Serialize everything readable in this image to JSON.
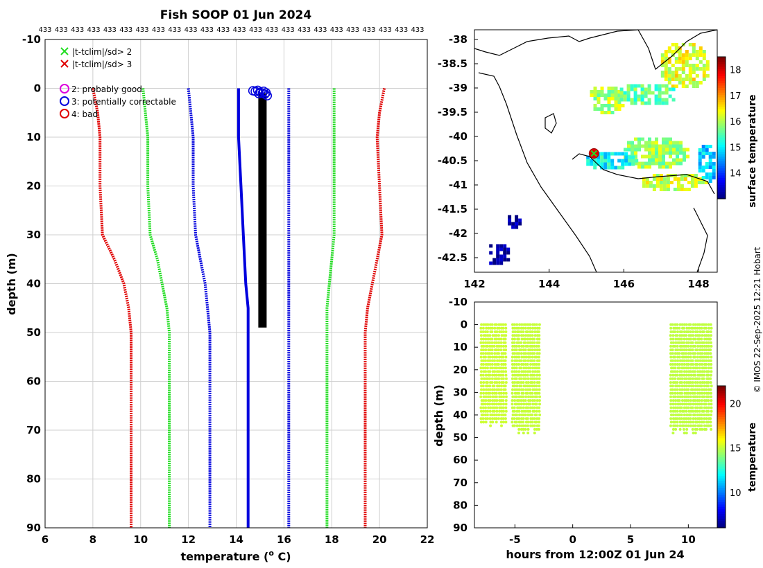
{
  "title": "Fish SOOP 01 Jun 2024",
  "credit": "© IMOS 22-Sep-2025 12:21 Hobart",
  "colors": {
    "red": "#e00000",
    "green": "#22dd22",
    "blue": "#0000dd",
    "black": "#000000",
    "magenta": "#dd00dd",
    "grid": "#cfcfcf"
  },
  "chart_data": [
    {
      "type": "line",
      "name": "profile",
      "xlabel": "temperature (o C)",
      "xlabel_main": "temperature (",
      "xlabel_sup": "o",
      "xlabel_end": " C)",
      "ylabel": "depth (m)",
      "xlim": [
        6,
        22
      ],
      "ylim": [
        -10,
        90
      ],
      "y_reversed": true,
      "xticks": [
        "6",
        "8",
        "10",
        "12",
        "14",
        "16",
        "18",
        "20",
        "22"
      ],
      "yticks": [
        "-10",
        "0",
        "10",
        "20",
        "30",
        "40",
        "50",
        "60",
        "70",
        "80",
        "90"
      ],
      "top_count_label": "433",
      "top_count_repeats": 24,
      "grid": true,
      "legend": [
        {
          "label": "|t-tclim|/sd> 2",
          "marker": "x",
          "color": "green"
        },
        {
          "label": "|t-tclim|/sd> 3",
          "marker": "x",
          "color": "red"
        },
        {
          "label": "2: probably good",
          "marker": "o",
          "color": "magenta"
        },
        {
          "label": "3: potentially correctable",
          "marker": "o",
          "color": "blue"
        },
        {
          "label": "4: bad",
          "marker": "o",
          "color": "red"
        }
      ],
      "series": [
        {
          "name": "clim -3sd",
          "color": "red",
          "points": [
            [
              8.0,
              0
            ],
            [
              8.2,
              5
            ],
            [
              8.3,
              10
            ],
            [
              8.3,
              20
            ],
            [
              8.4,
              30
            ],
            [
              8.9,
              35
            ],
            [
              9.3,
              40
            ],
            [
              9.5,
              45
            ],
            [
              9.6,
              50
            ],
            [
              9.6,
              60
            ],
            [
              9.6,
              70
            ],
            [
              9.6,
              80
            ],
            [
              9.6,
              90
            ]
          ]
        },
        {
          "name": "clim -2sd",
          "color": "green",
          "points": [
            [
              10.1,
              0
            ],
            [
              10.2,
              5
            ],
            [
              10.3,
              10
            ],
            [
              10.3,
              20
            ],
            [
              10.4,
              30
            ],
            [
              10.7,
              35
            ],
            [
              10.9,
              40
            ],
            [
              11.1,
              45
            ],
            [
              11.2,
              50
            ],
            [
              11.2,
              60
            ],
            [
              11.2,
              70
            ],
            [
              11.2,
              80
            ],
            [
              11.2,
              90
            ]
          ]
        },
        {
          "name": "clim -1sd",
          "color": "blue",
          "points": [
            [
              12.0,
              0
            ],
            [
              12.1,
              5
            ],
            [
              12.2,
              10
            ],
            [
              12.2,
              20
            ],
            [
              12.3,
              30
            ],
            [
              12.5,
              35
            ],
            [
              12.7,
              40
            ],
            [
              12.8,
              45
            ],
            [
              12.9,
              50
            ],
            [
              12.9,
              60
            ],
            [
              12.9,
              70
            ],
            [
              12.9,
              80
            ],
            [
              12.9,
              90
            ]
          ]
        },
        {
          "name": "clim mean",
          "color": "blue",
          "points": [
            [
              14.1,
              0
            ],
            [
              14.1,
              10
            ],
            [
              14.2,
              20
            ],
            [
              14.3,
              30
            ],
            [
              14.4,
              40
            ],
            [
              14.5,
              45
            ],
            [
              14.5,
              50
            ],
            [
              14.5,
              60
            ],
            [
              14.5,
              90
            ]
          ]
        },
        {
          "name": "clim +1sd",
          "color": "blue",
          "points": [
            [
              16.2,
              0
            ],
            [
              16.2,
              10
            ],
            [
              16.2,
              20
            ],
            [
              16.2,
              30
            ],
            [
              16.2,
              40
            ],
            [
              16.2,
              50
            ],
            [
              16.2,
              60
            ],
            [
              16.2,
              70
            ],
            [
              16.2,
              80
            ],
            [
              16.2,
              90
            ]
          ]
        },
        {
          "name": "clim +2sd",
          "color": "green",
          "points": [
            [
              18.1,
              0
            ],
            [
              18.1,
              10
            ],
            [
              18.1,
              20
            ],
            [
              18.1,
              30
            ],
            [
              18.0,
              35
            ],
            [
              17.9,
              40
            ],
            [
              17.8,
              45
            ],
            [
              17.8,
              50
            ],
            [
              17.8,
              60
            ],
            [
              17.8,
              70
            ],
            [
              17.8,
              80
            ],
            [
              17.8,
              90
            ]
          ]
        },
        {
          "name": "clim +3sd",
          "color": "red",
          "points": [
            [
              20.2,
              0
            ],
            [
              20.0,
              5
            ],
            [
              19.9,
              10
            ],
            [
              20.0,
              20
            ],
            [
              20.1,
              30
            ],
            [
              19.9,
              35
            ],
            [
              19.7,
              40
            ],
            [
              19.5,
              45
            ],
            [
              19.4,
              50
            ],
            [
              19.4,
              60
            ],
            [
              19.4,
              70
            ],
            [
              19.4,
              80
            ],
            [
              19.4,
              90
            ]
          ]
        },
        {
          "name": "observed",
          "color": "black",
          "points": [
            [
              15.1,
              1
            ],
            [
              15.1,
              10
            ],
            [
              15.1,
              20
            ],
            [
              15.1,
              30
            ],
            [
              15.1,
              40
            ],
            [
              15.1,
              49
            ]
          ]
        }
      ],
      "flag_circles": [
        [
          14.7,
          0.5
        ],
        [
          14.8,
          0.6
        ],
        [
          14.9,
          0.4
        ],
        [
          15.0,
          0.8
        ],
        [
          15.1,
          1.0
        ],
        [
          15.15,
          0.6
        ],
        [
          15.2,
          1.2
        ],
        [
          15.25,
          0.9
        ],
        [
          15.3,
          1.5
        ],
        [
          14.95,
          1.1
        ]
      ]
    },
    {
      "type": "heatmap",
      "name": "sst_map",
      "xlim": [
        142,
        148.5
      ],
      "ylim": [
        -42.8,
        -37.8
      ],
      "xticks": [
        "142",
        "144",
        "146",
        "148"
      ],
      "yticks": [
        "-38",
        "-38.5",
        "-39",
        "-39.5",
        "-40",
        "-40.5",
        "-41",
        "-41.5",
        "-42",
        "-42.5"
      ],
      "colorbar_label": "surface temperature",
      "colorbar_range": [
        13,
        18.5
      ],
      "colorbar_ticks": [
        "14",
        "15",
        "16",
        "17",
        "18"
      ],
      "track_position": [
        145.2,
        -40.35
      ],
      "sst_patches": [
        {
          "lon": 147.6,
          "lat": -38.5,
          "rlon": 0.7,
          "rlat": 0.5,
          "value": 16.3
        },
        {
          "lon": 145.5,
          "lat": -39.2,
          "rlon": 0.5,
          "rlat": 0.3,
          "value": 16.0
        },
        {
          "lon": 146.6,
          "lat": -39.1,
          "rlon": 0.8,
          "rlat": 0.25,
          "value": 15.6
        },
        {
          "lon": 146.8,
          "lat": -40.3,
          "rlon": 0.9,
          "rlat": 0.35,
          "value": 15.9
        },
        {
          "lon": 145.6,
          "lat": -40.45,
          "rlon": 0.7,
          "rlat": 0.2,
          "value": 15.1
        },
        {
          "lon": 147.3,
          "lat": -40.9,
          "rlon": 0.9,
          "rlat": 0.2,
          "value": 16.2
        },
        {
          "lon": 148.2,
          "lat": -40.5,
          "rlon": 0.3,
          "rlat": 0.4,
          "value": 14.8
        },
        {
          "lon": 142.6,
          "lat": -42.4,
          "rlon": 0.3,
          "rlat": 0.25,
          "value": 13.1
        },
        {
          "lon": 143.0,
          "lat": -41.7,
          "rlon": 0.2,
          "rlat": 0.15,
          "value": 13.1
        }
      ]
    },
    {
      "type": "scatter",
      "name": "time_depth",
      "xlabel": "hours from 12:00Z 01 Jun 24",
      "ylabel": "depth (m)",
      "xlim": [
        -8.5,
        12.5
      ],
      "ylim": [
        -10,
        90
      ],
      "y_reversed": true,
      "xticks": [
        "-5",
        "0",
        "5",
        "10"
      ],
      "yticks": [
        "-10",
        "0",
        "10",
        "20",
        "30",
        "40",
        "50",
        "60",
        "70",
        "80",
        "90"
      ],
      "colorbar_label": "temperature",
      "colorbar_range": [
        6,
        22
      ],
      "colorbar_ticks": [
        "10",
        "15",
        "20"
      ],
      "casts": [
        {
          "t0": -7.9,
          "t1": -5.6,
          "depth0": 0,
          "depth1": 46,
          "temperature": 15.2
        },
        {
          "t0": -5.2,
          "t1": -2.8,
          "depth0": 0,
          "depth1": 49,
          "temperature": 15.1
        },
        {
          "t0": 8.5,
          "t1": 12.1,
          "depth0": 0,
          "depth1": 49,
          "temperature": 15.0
        }
      ]
    }
  ]
}
